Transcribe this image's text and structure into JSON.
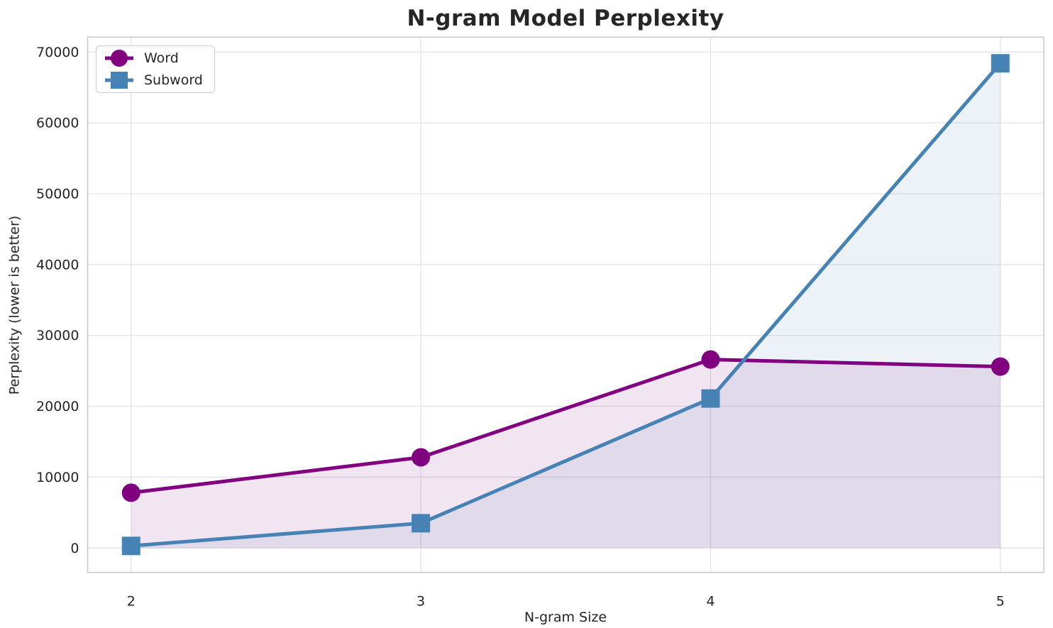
{
  "chart_data": {
    "type": "line",
    "title": "N-gram Model Perplexity",
    "xlabel": "N-gram Size",
    "ylabel": "Perplexity (lower is better)",
    "x": [
      2,
      3,
      4,
      5
    ],
    "series": [
      {
        "name": "Word",
        "marker": "circle",
        "color": "#800080",
        "values": [
          7800,
          12800,
          26600,
          25600
        ]
      },
      {
        "name": "Subword",
        "marker": "square",
        "color": "#4682B4",
        "values": [
          300,
          3500,
          21100,
          68400
        ]
      }
    ],
    "fill_to_zero": true,
    "fill_opacity": 0.1,
    "line_width": 5,
    "xlim": [
      1.85,
      5.15
    ],
    "ylim": [
      -3445,
      72100
    ],
    "xticks": [
      2,
      3,
      4,
      5
    ],
    "yticks": [
      0,
      10000,
      20000,
      30000,
      40000,
      50000,
      60000,
      70000
    ],
    "grid": true,
    "legend_position": "upper left",
    "grid_color": "#e3e3e3",
    "spine_color": "#cbcbcb",
    "text_color": "#262626",
    "background_color": "#ffffff"
  }
}
